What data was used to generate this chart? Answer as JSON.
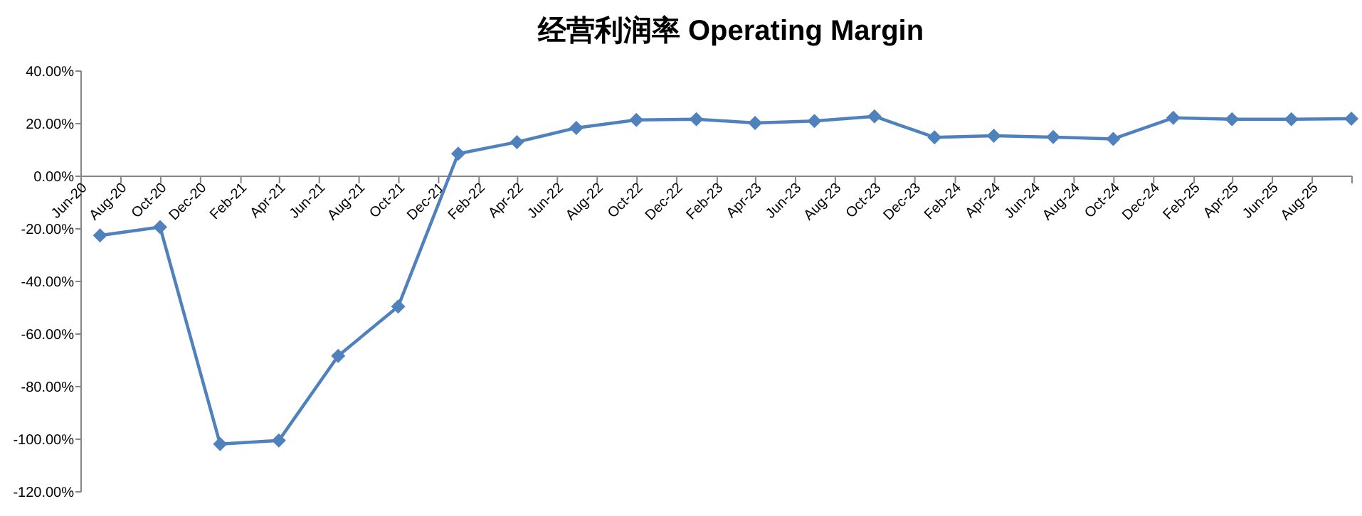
{
  "chart_data": {
    "type": "line",
    "title": "经营利润率 Operating Margin",
    "x": [
      "2020-06-30",
      "2020-09-30",
      "2020-12-31",
      "2021-03-31",
      "2021-06-30",
      "2021-09-30",
      "2021-12-31",
      "2022-03-31",
      "2022-06-30",
      "2022-09-30",
      "2022-12-31",
      "2023-03-31",
      "2023-06-30",
      "2023-09-30",
      "2023-12-31",
      "2024-03-31",
      "2024-06-30",
      "2024-09-30",
      "2024-12-31",
      "2025-03-31",
      "2025-06-30",
      "2025-09-30"
    ],
    "series": [
      {
        "color": "#4f81bd",
        "values": [
          -22.5,
          -19.3,
          -101.8,
          -100.5,
          -68.3,
          -49.5,
          8.6,
          13,
          18.4,
          21.4,
          21.7,
          20.3,
          21,
          22.8,
          14.8,
          15.4,
          14.9,
          14.2,
          22.2,
          21.7,
          21.7,
          21.9
        ]
      }
    ],
    "marker": "diamond",
    "xlim": [
      "2020-06-01",
      "2025-10-01"
    ],
    "xticks": [
      {
        "value": "2020-06-01",
        "label": "Jun-20"
      },
      {
        "value": "2020-08-01",
        "label": "Aug-20"
      },
      {
        "value": "2020-10-01",
        "label": "Oct-20"
      },
      {
        "value": "2020-12-01",
        "label": "Dec-20"
      },
      {
        "value": "2021-02-01",
        "label": "Feb-21"
      },
      {
        "value": "2021-04-01",
        "label": "Apr-21"
      },
      {
        "value": "2021-06-01",
        "label": "Jun-21"
      },
      {
        "value": "2021-08-01",
        "label": "Aug-21"
      },
      {
        "value": "2021-10-01",
        "label": "Oct-21"
      },
      {
        "value": "2021-12-01",
        "label": "Dec-21"
      },
      {
        "value": "2022-02-01",
        "label": "Feb-22"
      },
      {
        "value": "2022-04-01",
        "label": "Apr-22"
      },
      {
        "value": "2022-06-01",
        "label": "Jun-22"
      },
      {
        "value": "2022-08-01",
        "label": "Aug-22"
      },
      {
        "value": "2022-10-01",
        "label": "Oct-22"
      },
      {
        "value": "2022-12-01",
        "label": "Dec-22"
      },
      {
        "value": "2023-02-01",
        "label": "Feb-23"
      },
      {
        "value": "2023-04-01",
        "label": "Apr-23"
      },
      {
        "value": "2023-06-01",
        "label": "Jun-23"
      },
      {
        "value": "2023-08-01",
        "label": "Aug-23"
      },
      {
        "value": "2023-10-01",
        "label": "Oct-23"
      },
      {
        "value": "2023-12-01",
        "label": "Dec-23"
      },
      {
        "value": "2024-02-01",
        "label": "Feb-24"
      },
      {
        "value": "2024-04-01",
        "label": "Apr-24"
      },
      {
        "value": "2024-06-01",
        "label": "Jun-24"
      },
      {
        "value": "2024-08-01",
        "label": "Aug-24"
      },
      {
        "value": "2024-10-01",
        "label": "Oct-24"
      },
      {
        "value": "2024-12-01",
        "label": "Dec-24"
      },
      {
        "value": "2025-02-01",
        "label": "Feb-25"
      },
      {
        "value": "2025-04-01",
        "label": "Apr-25"
      },
      {
        "value": "2025-06-01",
        "label": "Jun-25"
      },
      {
        "value": "2025-08-01",
        "label": "Aug-25"
      },
      {
        "value": "2025-10-01",
        "label": null
      }
    ],
    "ylim": [
      -120,
      40
    ],
    "yticks": [
      {
        "value": 40,
        "label": "40.00%"
      },
      {
        "value": 20,
        "label": "20.00%"
      },
      {
        "value": 0,
        "label": "0.00%"
      },
      {
        "value": -20,
        "label": "-20.00%"
      },
      {
        "value": -40,
        "label": "-40.00%"
      },
      {
        "value": -60,
        "label": "-60.00%"
      },
      {
        "value": -80,
        "label": "-80.00%"
      },
      {
        "value": -100,
        "label": "-100.00%"
      },
      {
        "value": -120,
        "label": "-120.00%"
      }
    ]
  }
}
